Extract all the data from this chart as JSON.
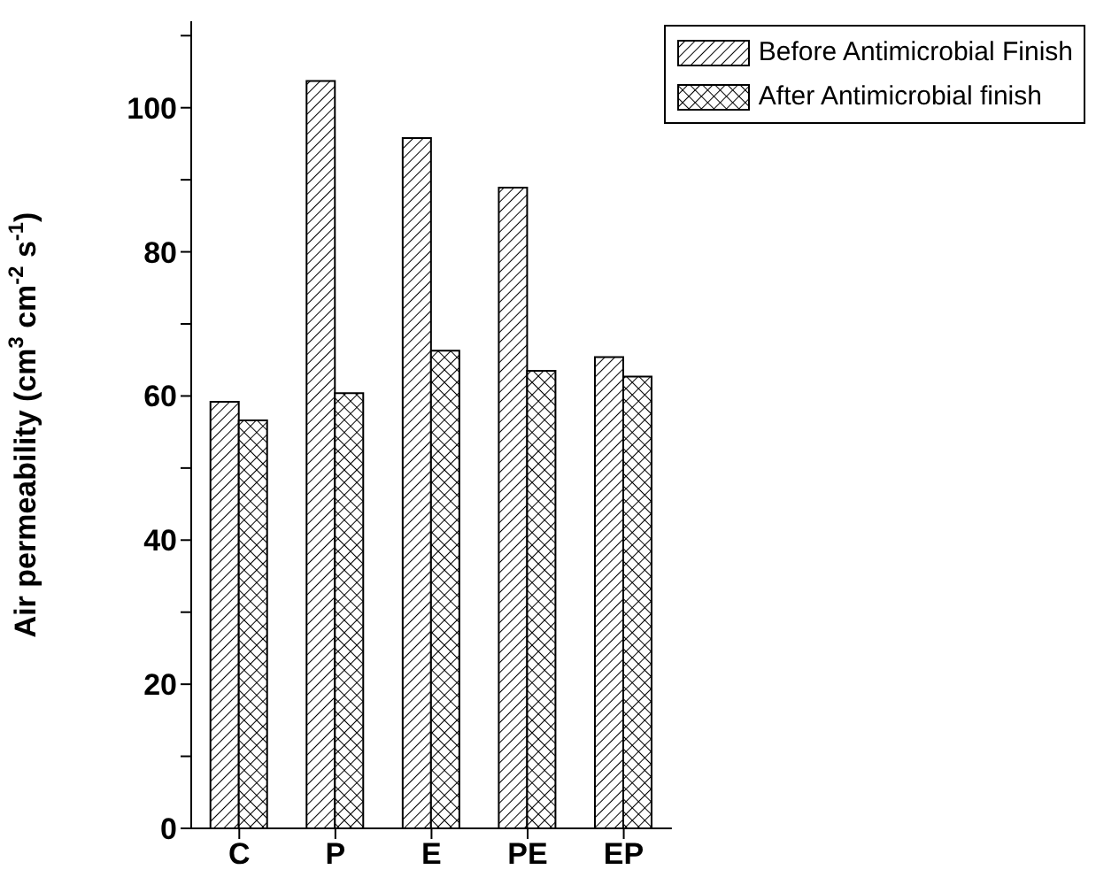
{
  "chart_data": {
    "type": "bar",
    "ylabel": "Air permeability (cm$^{3}$ cm$^{-2}$ s$^{-1}$)",
    "categories": [
      "C",
      "P",
      "E",
      "PE",
      "EP"
    ],
    "series": [
      {
        "name": "Before Antimicrobial Finish",
        "color": "#000000",
        "values": [
          59.2,
          103.7,
          95.8,
          88.9,
          65.4
        ]
      },
      {
        "name": "After Antimicrobial finish",
        "color": "#000000",
        "values": [
          56.6,
          60.4,
          66.3,
          63.5,
          62.7
        ]
      }
    ],
    "ylim": [
      0,
      112
    ],
    "yticks": [
      0,
      {
        "value": 10,
        "label": null
      },
      20,
      {
        "value": 30,
        "label": null
      },
      40,
      {
        "value": 50,
        "label": null
      },
      60,
      {
        "value": 70,
        "label": null
      },
      80,
      {
        "value": 90,
        "label": null
      },
      100,
      {
        "value": 110,
        "label": null
      }
    ],
    "grid": false,
    "legend": "top right"
  }
}
